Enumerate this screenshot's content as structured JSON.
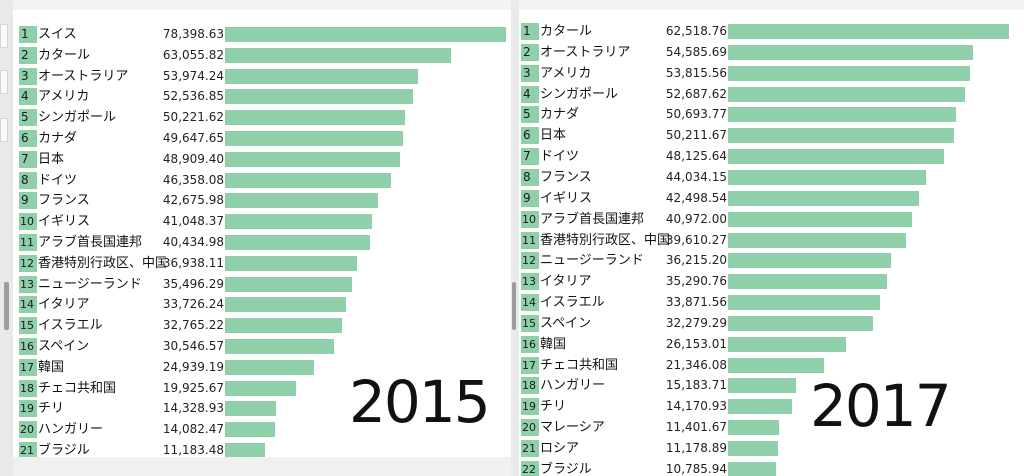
{
  "chart_data": [
    {
      "type": "bar",
      "title": "2015",
      "xlim": [
        0,
        78398.63
      ],
      "rows": [
        {
          "rank": "1",
          "name": "スイス",
          "value": 78398.63,
          "label": "78,398.63"
        },
        {
          "rank": "2",
          "name": "カタール",
          "value": 63055.82,
          "label": "63,055.82"
        },
        {
          "rank": "3",
          "name": "オーストラリア",
          "value": 53974.24,
          "label": "53,974.24"
        },
        {
          "rank": "4",
          "name": "アメリカ",
          "value": 52536.85,
          "label": "52,536.85"
        },
        {
          "rank": "5",
          "name": "シンガポール",
          "value": 50221.62,
          "label": "50,221.62"
        },
        {
          "rank": "6",
          "name": "カナダ",
          "value": 49647.65,
          "label": "49,647.65"
        },
        {
          "rank": "7",
          "name": "日本",
          "value": 48909.4,
          "label": "48,909.40"
        },
        {
          "rank": "8",
          "name": "ドイツ",
          "value": 46358.08,
          "label": "46,358.08"
        },
        {
          "rank": "9",
          "name": "フランス",
          "value": 42675.98,
          "label": "42,675.98"
        },
        {
          "rank": "10",
          "name": "イギリス",
          "value": 41048.37,
          "label": "41,048.37"
        },
        {
          "rank": "11",
          "name": "アラブ首長国連邦",
          "value": 40434.98,
          "label": "40,434.98"
        },
        {
          "rank": "12",
          "name": "香港特別行政区、中国",
          "value": 36938.11,
          "label": "36,938.11"
        },
        {
          "rank": "13",
          "name": "ニュージーランド",
          "value": 35496.29,
          "label": "35,496.29"
        },
        {
          "rank": "14",
          "name": "イタリア",
          "value": 33726.24,
          "label": "33,726.24"
        },
        {
          "rank": "15",
          "name": "イスラエル",
          "value": 32765.22,
          "label": "32,765.22"
        },
        {
          "rank": "16",
          "name": "スペイン",
          "value": 30546.57,
          "label": "30,546.57"
        },
        {
          "rank": "17",
          "name": "韓国",
          "value": 24939.19,
          "label": "24,939.19"
        },
        {
          "rank": "18",
          "name": "チェコ共和国",
          "value": 19925.67,
          "label": "19,925.67"
        },
        {
          "rank": "19",
          "name": "チリ",
          "value": 14328.93,
          "label": "14,328.93"
        },
        {
          "rank": "20",
          "name": "ハンガリー",
          "value": 14082.47,
          "label": "14,082.47"
        },
        {
          "rank": "21",
          "name": "ブラジル",
          "value": 11183.48,
          "label": "11,183.48"
        }
      ]
    },
    {
      "type": "bar",
      "title": "2017",
      "xlim": [
        0,
        62518.76
      ],
      "rows": [
        {
          "rank": "1",
          "name": "カタール",
          "value": 62518.76,
          "label": "62,518.76"
        },
        {
          "rank": "2",
          "name": "オーストラリア",
          "value": 54585.69,
          "label": "54,585.69"
        },
        {
          "rank": "3",
          "name": "アメリカ",
          "value": 53815.56,
          "label": "53,815.56"
        },
        {
          "rank": "4",
          "name": "シンガポール",
          "value": 52687.62,
          "label": "52,687.62"
        },
        {
          "rank": "5",
          "name": "カナダ",
          "value": 50693.77,
          "label": "50,693.77"
        },
        {
          "rank": "6",
          "name": "日本",
          "value": 50211.67,
          "label": "50,211.67"
        },
        {
          "rank": "7",
          "name": "ドイツ",
          "value": 48125.64,
          "label": "48,125.64"
        },
        {
          "rank": "8",
          "name": "フランス",
          "value": 44034.15,
          "label": "44,034.15"
        },
        {
          "rank": "9",
          "name": "イギリス",
          "value": 42498.54,
          "label": "42,498.54"
        },
        {
          "rank": "10",
          "name": "アラブ首長国連邦",
          "value": 40972.0,
          "label": "40,972.00"
        },
        {
          "rank": "11",
          "name": "香港特別行政区、中国",
          "value": 39610.27,
          "label": "39,610.27"
        },
        {
          "rank": "12",
          "name": "ニュージーランド",
          "value": 36215.2,
          "label": "36,215.20"
        },
        {
          "rank": "13",
          "name": "イタリア",
          "value": 35290.76,
          "label": "35,290.76"
        },
        {
          "rank": "14",
          "name": "イスラエル",
          "value": 33871.56,
          "label": "33,871.56"
        },
        {
          "rank": "15",
          "name": "スペイン",
          "value": 32279.29,
          "label": "32,279.29"
        },
        {
          "rank": "16",
          "name": "韓国",
          "value": 26153.01,
          "label": "26,153.01"
        },
        {
          "rank": "17",
          "name": "チェコ共和国",
          "value": 21346.08,
          "label": "21,346.08"
        },
        {
          "rank": "18",
          "name": "ハンガリー",
          "value": 15183.71,
          "label": "15,183.71"
        },
        {
          "rank": "19",
          "name": "チリ",
          "value": 14170.93,
          "label": "14,170.93"
        },
        {
          "rank": "20",
          "name": "マレーシア",
          "value": 11401.67,
          "label": "11,401.67"
        },
        {
          "rank": "21",
          "name": "ロシア",
          "value": 11178.89,
          "label": "11,178.89"
        },
        {
          "rank": "22",
          "name": "ブラジル",
          "value": 10785.94,
          "label": "10,785.94"
        }
      ]
    }
  ],
  "colors": {
    "bar": "#8fd0ab"
  }
}
